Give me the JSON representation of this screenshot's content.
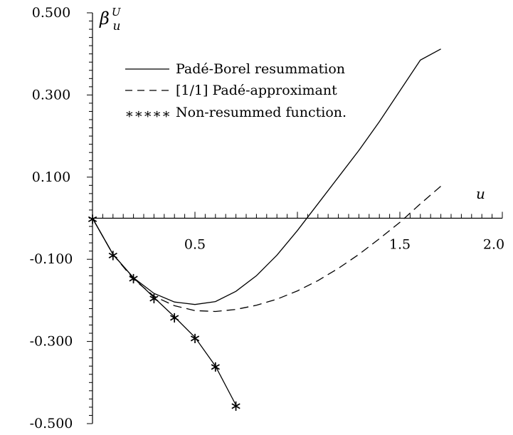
{
  "chart_data": {
    "type": "line",
    "title": "",
    "xlabel": "u",
    "ylabel": "β",
    "ylabel_sup": "U",
    "ylabel_sub": "u",
    "xlim": [
      0,
      2.0
    ],
    "ylim": [
      -0.5,
      0.5
    ],
    "x_ticks": [
      {
        "value": 0.5,
        "label": "0.5"
      },
      {
        "value": 1.5,
        "label": "1.5"
      },
      {
        "value": 2.0,
        "label": "2.0"
      }
    ],
    "y_ticks": [
      {
        "value": 0.5,
        "label": "0.500"
      },
      {
        "value": 0.3,
        "label": "0.300"
      },
      {
        "value": 0.1,
        "label": "0.100"
      },
      {
        "value": -0.1,
        "label": "-0.100"
      },
      {
        "value": -0.3,
        "label": "-0.300"
      },
      {
        "value": -0.5,
        "label": "-0.500"
      }
    ],
    "grid": false,
    "legend_position": "top-left",
    "series": [
      {
        "name": "Padé-Borel resummation",
        "legend_symbol": "",
        "style": "solid",
        "x": [
          0,
          0.1,
          0.2,
          0.3,
          0.4,
          0.5,
          0.6,
          0.7,
          0.8,
          0.9,
          1.0,
          1.1,
          1.2,
          1.3,
          1.4,
          1.5,
          1.6,
          1.7
        ],
        "y": [
          0,
          -0.088,
          -0.145,
          -0.183,
          -0.204,
          -0.21,
          -0.203,
          -0.178,
          -0.14,
          -0.09,
          -0.03,
          0.035,
          0.1,
          0.165,
          0.235,
          0.31,
          0.385,
          0.412
        ]
      },
      {
        "name": "[1/1] Padé-approximant",
        "legend_symbol": "",
        "style": "dashed",
        "x": [
          0,
          0.1,
          0.2,
          0.3,
          0.4,
          0.5,
          0.6,
          0.7,
          0.8,
          0.9,
          1.0,
          1.1,
          1.2,
          1.3,
          1.4,
          1.5,
          1.6,
          1.7
        ],
        "y": [
          0,
          -0.088,
          -0.148,
          -0.19,
          -0.213,
          -0.225,
          -0.227,
          -0.222,
          -0.212,
          -0.197,
          -0.177,
          -0.152,
          -0.122,
          -0.088,
          -0.05,
          -0.01,
          0.035,
          0.078
        ]
      },
      {
        "name": "Non-resummed function.",
        "legend_symbol": "∗∗∗∗∗",
        "style": "solid-with-asterisks",
        "x": [
          0,
          0.1,
          0.2,
          0.3,
          0.4,
          0.5,
          0.6,
          0.7
        ],
        "y": [
          0,
          -0.088,
          -0.145,
          -0.193,
          -0.24,
          -0.29,
          -0.36,
          -0.455
        ]
      }
    ]
  }
}
